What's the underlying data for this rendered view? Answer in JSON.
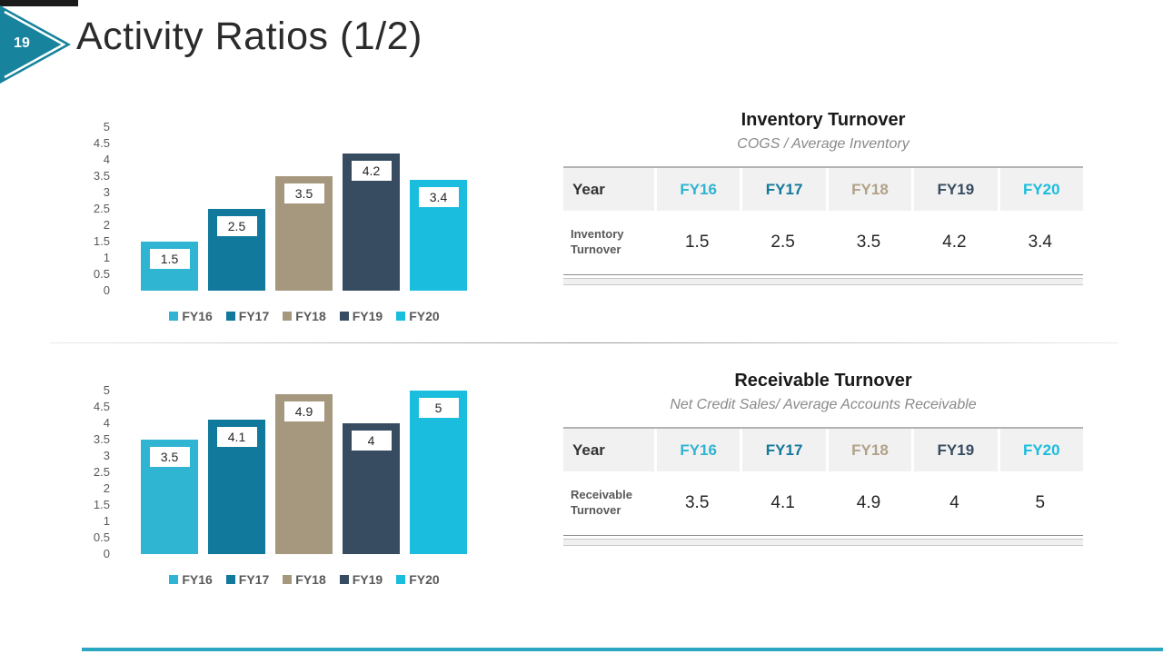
{
  "slide": {
    "number": "19",
    "title": "Activity Ratios (1/2)"
  },
  "colors": {
    "top_bar": "#1A1A1A",
    "badge_teal": "#17839C",
    "bottom_bar": "#2BA6C0",
    "series": {
      "FY16": "#2FB4D1",
      "FY17": "#11799B",
      "FY18": "#A6977F",
      "FY19": "#374C60",
      "FY20": "#1ABDDE"
    },
    "table_header_text": {
      "Year": "#333333",
      "FY16": "#2FB4D1",
      "FY17": "#11799B",
      "FY18": "#B1A188",
      "FY19": "#374C60",
      "FY20": "#1ABDDE"
    }
  },
  "chart_data": [
    {
      "type": "bar",
      "title": "Inventory Turnover",
      "categories": [
        "FY16",
        "FY17",
        "FY18",
        "FY19",
        "FY20"
      ],
      "values": [
        1.5,
        2.5,
        3.5,
        4.2,
        3.4
      ],
      "value_labels": [
        "1.5",
        "2.5",
        "3.5",
        "4.2",
        "3.4"
      ],
      "ylim": [
        0,
        5
      ],
      "yticks": [
        "5",
        "4.5",
        "4",
        "3.5",
        "3",
        "2.5",
        "2",
        "1.5",
        "1",
        "0.5",
        "0"
      ],
      "grid": false,
      "legend_position": "bottom",
      "legend": [
        "FY16",
        "FY17",
        "FY18",
        "FY19",
        "FY20"
      ]
    },
    {
      "type": "bar",
      "title": "Receivable Turnover",
      "categories": [
        "FY16",
        "FY17",
        "FY18",
        "FY19",
        "FY20"
      ],
      "values": [
        3.5,
        4.1,
        4.9,
        4,
        5
      ],
      "value_labels": [
        "3.5",
        "4.1",
        "4.9",
        "4",
        "5"
      ],
      "ylim": [
        0,
        5
      ],
      "yticks": [
        "5",
        "4.5",
        "4",
        "3.5",
        "3",
        "2.5",
        "2",
        "1.5",
        "1",
        "0.5",
        "0"
      ],
      "grid": false,
      "legend_position": "bottom",
      "legend": [
        "FY16",
        "FY17",
        "FY18",
        "FY19",
        "FY20"
      ]
    }
  ],
  "tables": [
    {
      "title": "Inventory Turnover",
      "subtitle": "COGS / Average Inventory",
      "header": [
        "Year",
        "FY16",
        "FY17",
        "FY18",
        "FY19",
        "FY20"
      ],
      "row_label": "Inventory Turnover",
      "values": [
        "1.5",
        "2.5",
        "3.5",
        "4.2",
        "3.4"
      ]
    },
    {
      "title": "Receivable Turnover",
      "subtitle": "Net Credit Sales/ Average Accounts Receivable",
      "header": [
        "Year",
        "FY16",
        "FY17",
        "FY18",
        "FY19",
        "FY20"
      ],
      "row_label": "Receivable Turnover",
      "values": [
        "3.5",
        "4.1",
        "4.9",
        "4",
        "5"
      ]
    }
  ]
}
